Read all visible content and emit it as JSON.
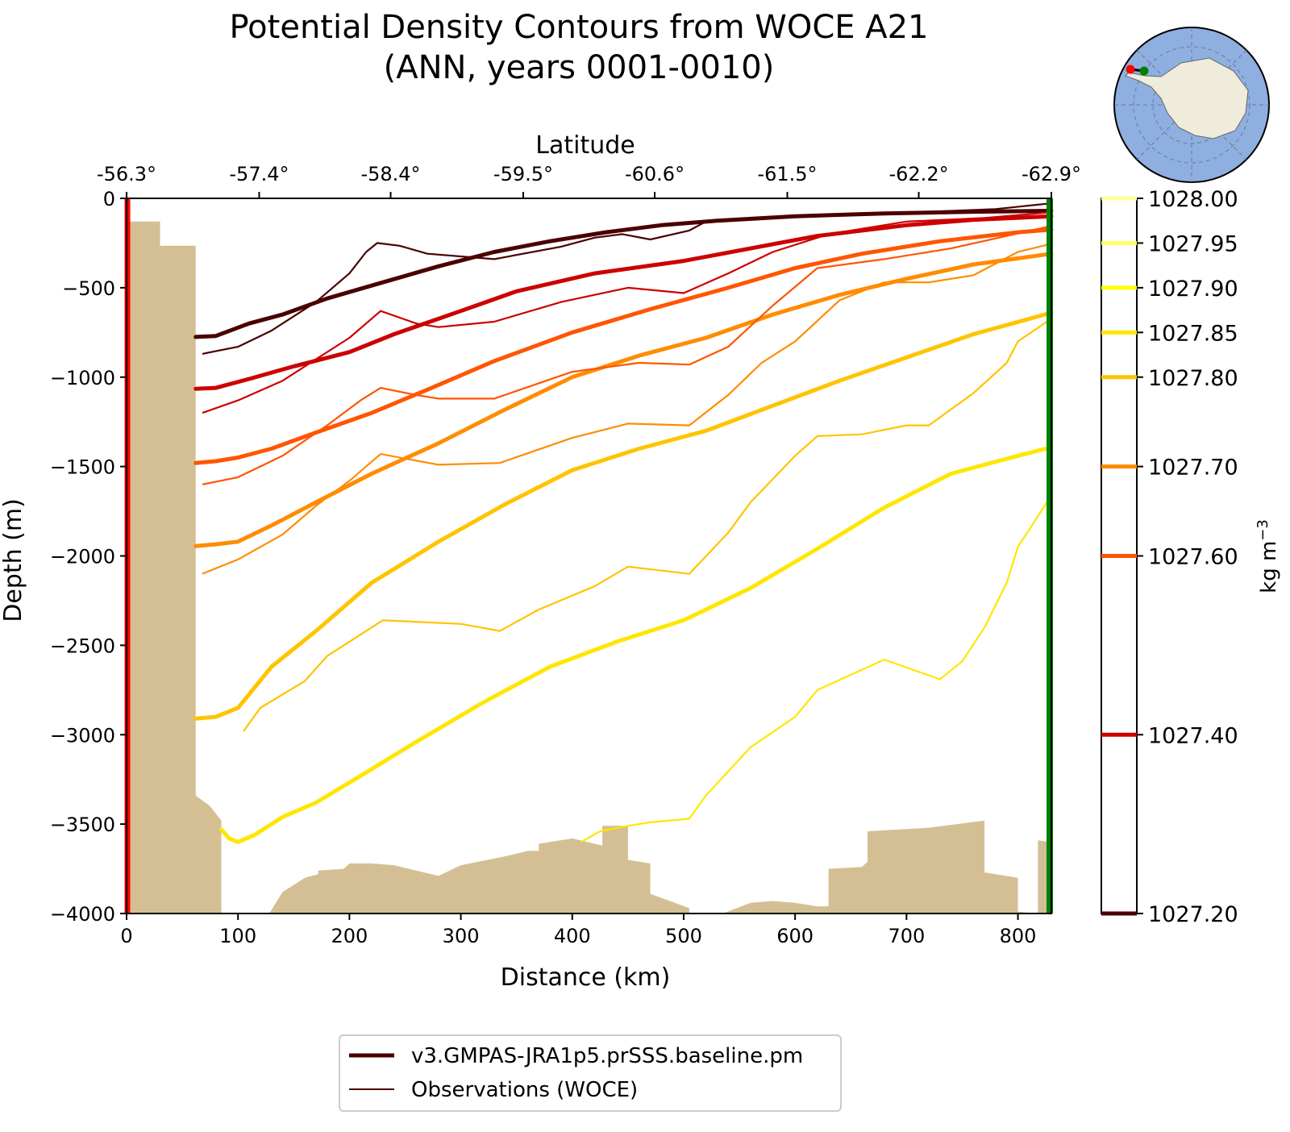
{
  "chart_data": {
    "type": "line",
    "title_line1": "Potential Density Contours from WOCE A21",
    "title_line2": "(ANN, years 0001-0010)",
    "xlabel": "Distance (km)",
    "ylabel": "Depth (m)",
    "top_xlabel": "Latitude",
    "xlim": [
      0,
      830
    ],
    "ylim": [
      -4000,
      0
    ],
    "x_ticks": [
      0,
      100,
      200,
      300,
      400,
      500,
      600,
      700,
      800
    ],
    "y_ticks": [
      0,
      -500,
      -1000,
      -1500,
      -2000,
      -2500,
      -3000,
      -3500,
      -4000
    ],
    "latitude_ticks": [
      {
        "x": 0,
        "label": "-56.3°"
      },
      {
        "x": 119,
        "label": "-57.4°"
      },
      {
        "x": 237,
        "label": "-58.4°"
      },
      {
        "x": 356,
        "label": "-59.5°"
      },
      {
        "x": 474,
        "label": "-60.6°"
      },
      {
        "x": 593,
        "label": "-61.5°"
      },
      {
        "x": 711,
        "label": "-62.2°"
      },
      {
        "x": 830,
        "label": "-62.9°"
      }
    ],
    "colorbar": {
      "label": "kg m",
      "label_superscript": "−3",
      "min": 1027.2,
      "max": 1028.0,
      "scale": "nonlinear",
      "ticks": [
        {
          "value": "1028.00",
          "frac": 1.0,
          "color": "#ffff9e"
        },
        {
          "value": "1027.95",
          "frac": 0.9375,
          "color": "#ffff66"
        },
        {
          "value": "1027.90",
          "frac": 0.875,
          "color": "#ffff00"
        },
        {
          "value": "1027.85",
          "frac": 0.8125,
          "color": "#ffe600"
        },
        {
          "value": "1027.80",
          "frac": 0.75,
          "color": "#ffc400"
        },
        {
          "value": "1027.70",
          "frac": 0.625,
          "color": "#ff8c00"
        },
        {
          "value": "1027.60",
          "frac": 0.5,
          "color": "#ff5500"
        },
        {
          "value": "1027.40",
          "frac": 0.25,
          "color": "#cc0000"
        },
        {
          "value": "1027.20",
          "frac": 0.0,
          "color": "#4a0000"
        }
      ]
    },
    "model_series": [
      {
        "level": 1027.2,
        "color": "#4a0000",
        "points": [
          [
            62,
            -775
          ],
          [
            80,
            -770
          ],
          [
            110,
            -700
          ],
          [
            140,
            -650
          ],
          [
            180,
            -560
          ],
          [
            230,
            -470
          ],
          [
            280,
            -380
          ],
          [
            330,
            -300
          ],
          [
            380,
            -240
          ],
          [
            430,
            -190
          ],
          [
            480,
            -150
          ],
          [
            530,
            -125
          ],
          [
            600,
            -100
          ],
          [
            680,
            -85
          ],
          [
            760,
            -75
          ],
          [
            830,
            -70
          ]
        ]
      },
      {
        "level": 1027.4,
        "color": "#cc0000",
        "points": [
          [
            62,
            -1065
          ],
          [
            80,
            -1060
          ],
          [
            110,
            -1010
          ],
          [
            150,
            -940
          ],
          [
            200,
            -860
          ],
          [
            240,
            -760
          ],
          [
            300,
            -630
          ],
          [
            350,
            -520
          ],
          [
            420,
            -420
          ],
          [
            500,
            -350
          ],
          [
            560,
            -280
          ],
          [
            620,
            -210
          ],
          [
            700,
            -150
          ],
          [
            760,
            -120
          ],
          [
            830,
            -100
          ]
        ]
      },
      {
        "level": 1027.6,
        "color": "#ff5500",
        "points": [
          [
            62,
            -1480
          ],
          [
            80,
            -1470
          ],
          [
            100,
            -1450
          ],
          [
            130,
            -1400
          ],
          [
            170,
            -1310
          ],
          [
            220,
            -1200
          ],
          [
            270,
            -1070
          ],
          [
            330,
            -910
          ],
          [
            400,
            -750
          ],
          [
            470,
            -620
          ],
          [
            540,
            -500
          ],
          [
            600,
            -390
          ],
          [
            660,
            -310
          ],
          [
            730,
            -240
          ],
          [
            800,
            -190
          ],
          [
            830,
            -175
          ]
        ]
      },
      {
        "level": 1027.7,
        "color": "#ff8c00",
        "points": [
          [
            62,
            -1945
          ],
          [
            80,
            -1935
          ],
          [
            100,
            -1920
          ],
          [
            130,
            -1830
          ],
          [
            170,
            -1700
          ],
          [
            220,
            -1540
          ],
          [
            280,
            -1370
          ],
          [
            340,
            -1180
          ],
          [
            400,
            -1000
          ],
          [
            460,
            -880
          ],
          [
            520,
            -780
          ],
          [
            580,
            -650
          ],
          [
            640,
            -540
          ],
          [
            700,
            -450
          ],
          [
            760,
            -370
          ],
          [
            830,
            -310
          ]
        ]
      },
      {
        "level": 1027.8,
        "color": "#ffc400",
        "points": [
          [
            62,
            -2910
          ],
          [
            80,
            -2900
          ],
          [
            100,
            -2850
          ],
          [
            130,
            -2620
          ],
          [
            170,
            -2420
          ],
          [
            220,
            -2150
          ],
          [
            280,
            -1920
          ],
          [
            340,
            -1710
          ],
          [
            400,
            -1520
          ],
          [
            460,
            -1400
          ],
          [
            520,
            -1300
          ],
          [
            580,
            -1160
          ],
          [
            640,
            -1020
          ],
          [
            700,
            -890
          ],
          [
            760,
            -760
          ],
          [
            830,
            -640
          ]
        ]
      },
      {
        "level": 1027.85,
        "color": "#ffe600",
        "points": [
          [
            85,
            -3530
          ],
          [
            92,
            -3580
          ],
          [
            100,
            -3600
          ],
          [
            115,
            -3560
          ],
          [
            140,
            -3460
          ],
          [
            170,
            -3380
          ],
          [
            210,
            -3230
          ],
          [
            260,
            -3040
          ],
          [
            320,
            -2820
          ],
          [
            380,
            -2620
          ],
          [
            440,
            -2480
          ],
          [
            500,
            -2360
          ],
          [
            560,
            -2180
          ],
          [
            620,
            -1960
          ],
          [
            680,
            -1730
          ],
          [
            740,
            -1540
          ],
          [
            800,
            -1440
          ],
          [
            825,
            -1400
          ]
        ]
      }
    ],
    "obs_series": [
      {
        "level": 1027.2,
        "color": "#4a0000",
        "points": [
          [
            68,
            -870
          ],
          [
            100,
            -830
          ],
          [
            130,
            -740
          ],
          [
            170,
            -580
          ],
          [
            200,
            -420
          ],
          [
            215,
            -300
          ],
          [
            225,
            -250
          ],
          [
            245,
            -265
          ],
          [
            270,
            -310
          ],
          [
            330,
            -340
          ],
          [
            390,
            -270
          ],
          [
            420,
            -220
          ],
          [
            445,
            -200
          ],
          [
            470,
            -230
          ],
          [
            505,
            -180
          ],
          [
            520,
            -130
          ],
          [
            600,
            -100
          ],
          [
            700,
            -80
          ],
          [
            780,
            -60
          ],
          [
            826,
            -30
          ]
        ]
      },
      {
        "level": 1027.4,
        "color": "#cc0000",
        "points": [
          [
            68,
            -1200
          ],
          [
            100,
            -1130
          ],
          [
            140,
            -1020
          ],
          [
            170,
            -900
          ],
          [
            200,
            -780
          ],
          [
            228,
            -630
          ],
          [
            260,
            -700
          ],
          [
            280,
            -720
          ],
          [
            330,
            -690
          ],
          [
            390,
            -580
          ],
          [
            450,
            -500
          ],
          [
            500,
            -530
          ],
          [
            540,
            -420
          ],
          [
            580,
            -300
          ],
          [
            630,
            -200
          ],
          [
            700,
            -130
          ],
          [
            770,
            -110
          ],
          [
            826,
            -80
          ]
        ]
      },
      {
        "level": 1027.6,
        "color": "#ff5500",
        "points": [
          [
            68,
            -1600
          ],
          [
            100,
            -1560
          ],
          [
            140,
            -1440
          ],
          [
            180,
            -1270
          ],
          [
            210,
            -1130
          ],
          [
            228,
            -1060
          ],
          [
            260,
            -1100
          ],
          [
            280,
            -1120
          ],
          [
            330,
            -1120
          ],
          [
            400,
            -970
          ],
          [
            460,
            -920
          ],
          [
            505,
            -930
          ],
          [
            540,
            -830
          ],
          [
            580,
            -600
          ],
          [
            620,
            -390
          ],
          [
            680,
            -340
          ],
          [
            740,
            -280
          ],
          [
            826,
            -160
          ]
        ]
      },
      {
        "level": 1027.7,
        "color": "#ff8c00",
        "points": [
          [
            68,
            -2100
          ],
          [
            100,
            -2020
          ],
          [
            140,
            -1880
          ],
          [
            170,
            -1720
          ],
          [
            200,
            -1580
          ],
          [
            228,
            -1430
          ],
          [
            280,
            -1490
          ],
          [
            335,
            -1480
          ],
          [
            400,
            -1340
          ],
          [
            450,
            -1260
          ],
          [
            505,
            -1270
          ],
          [
            540,
            -1100
          ],
          [
            570,
            -920
          ],
          [
            600,
            -800
          ],
          [
            640,
            -570
          ],
          [
            680,
            -470
          ],
          [
            720,
            -470
          ],
          [
            760,
            -430
          ],
          [
            800,
            -300
          ],
          [
            826,
            -260
          ]
        ]
      },
      {
        "level": 1027.8,
        "color": "#ffc400",
        "points": [
          [
            105,
            -2980
          ],
          [
            120,
            -2850
          ],
          [
            160,
            -2700
          ],
          [
            180,
            -2560
          ],
          [
            230,
            -2360
          ],
          [
            300,
            -2380
          ],
          [
            335,
            -2420
          ],
          [
            370,
            -2300
          ],
          [
            420,
            -2170
          ],
          [
            450,
            -2060
          ],
          [
            505,
            -2100
          ],
          [
            540,
            -1870
          ],
          [
            560,
            -1700
          ],
          [
            600,
            -1440
          ],
          [
            620,
            -1330
          ],
          [
            660,
            -1320
          ],
          [
            700,
            -1270
          ],
          [
            720,
            -1270
          ],
          [
            760,
            -1090
          ],
          [
            790,
            -920
          ],
          [
            800,
            -800
          ],
          [
            826,
            -690
          ]
        ]
      },
      {
        "level": 1027.85,
        "color": "#ffe600",
        "points": [
          [
            408,
            -3600
          ],
          [
            425,
            -3540
          ],
          [
            450,
            -3510
          ],
          [
            470,
            -3490
          ],
          [
            505,
            -3470
          ],
          [
            520,
            -3340
          ],
          [
            560,
            -3070
          ],
          [
            600,
            -2900
          ],
          [
            620,
            -2750
          ],
          [
            680,
            -2580
          ],
          [
            730,
            -2690
          ],
          [
            750,
            -2590
          ],
          [
            770,
            -2400
          ],
          [
            790,
            -2150
          ],
          [
            800,
            -1950
          ],
          [
            826,
            -1700
          ]
        ]
      }
    ],
    "bathymetry": [
      [
        0,
        -4000
      ],
      [
        0,
        -130
      ],
      [
        30,
        -130
      ],
      [
        30,
        -265
      ],
      [
        62,
        -265
      ],
      [
        62,
        -3340
      ],
      [
        75,
        -3400
      ],
      [
        85,
        -3480
      ],
      [
        85,
        -4000
      ],
      [
        128,
        -4000
      ],
      [
        140,
        -3880
      ],
      [
        160,
        -3800
      ],
      [
        172,
        -3780
      ],
      [
        172,
        -3760
      ],
      [
        195,
        -3750
      ],
      [
        200,
        -3720
      ],
      [
        220,
        -3720
      ],
      [
        240,
        -3730
      ],
      [
        280,
        -3790
      ],
      [
        300,
        -3730
      ],
      [
        340,
        -3680
      ],
      [
        360,
        -3650
      ],
      [
        370,
        -3650
      ],
      [
        370,
        -3610
      ],
      [
        400,
        -3580
      ],
      [
        420,
        -3610
      ],
      [
        427,
        -3620
      ],
      [
        427,
        -3510
      ],
      [
        450,
        -3510
      ],
      [
        450,
        -3700
      ],
      [
        470,
        -3720
      ],
      [
        470,
        -3890
      ],
      [
        505,
        -3970
      ],
      [
        505,
        -4000
      ],
      [
        535,
        -4000
      ],
      [
        560,
        -3940
      ],
      [
        580,
        -3930
      ],
      [
        600,
        -3940
      ],
      [
        620,
        -3960
      ],
      [
        630,
        -3960
      ],
      [
        630,
        -3750
      ],
      [
        660,
        -3740
      ],
      [
        665,
        -3710
      ],
      [
        665,
        -3540
      ],
      [
        720,
        -3520
      ],
      [
        770,
        -3480
      ],
      [
        770,
        -3770
      ],
      [
        800,
        -3800
      ],
      [
        800,
        -3990
      ],
      [
        818,
        -4000
      ],
      [
        818,
        -3590
      ],
      [
        828,
        -3600
      ],
      [
        828,
        -1660
      ],
      [
        830,
        -1660
      ],
      [
        830,
        -4000
      ]
    ],
    "legend": [
      {
        "label": "v3.GMPAS-JRA1p5.prSSS.baseline.pm",
        "color": "#4a0000",
        "style": "thick"
      },
      {
        "label": "Observations (WOCE)",
        "color": "#4a0000",
        "style": "thin"
      }
    ],
    "section_start_color": "#ff0000",
    "section_end_color": "#008000",
    "land_color": "#d4bf95",
    "inset_map": {
      "ocean_color": "#8eafe0",
      "land_color": "#efecdc"
    }
  }
}
